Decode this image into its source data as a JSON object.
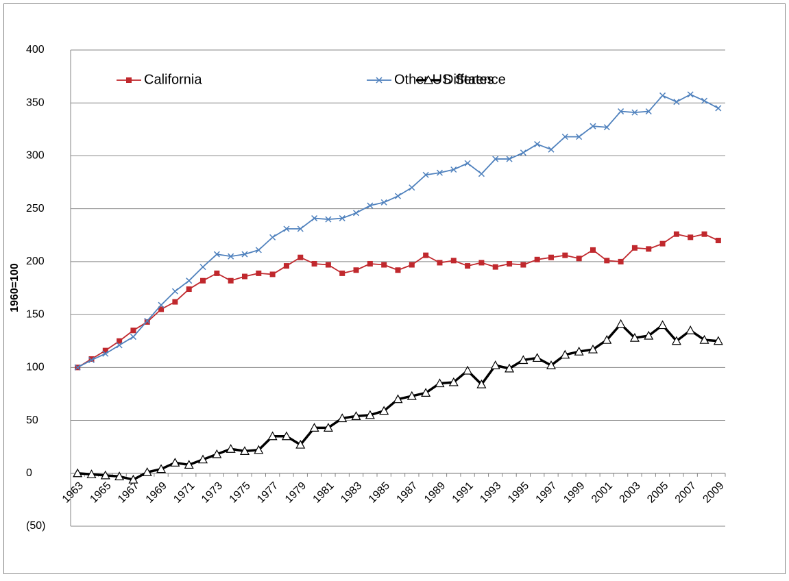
{
  "chart_data": {
    "type": "line",
    "y_label": "1960=100",
    "categories": [
      "1963",
      null,
      "1965",
      null,
      "1967",
      null,
      "1969",
      null,
      "1971",
      null,
      "1973",
      null,
      "1975",
      null,
      "1977",
      null,
      "1979",
      null,
      "1981",
      null,
      "1983",
      null,
      "1985",
      null,
      "1987",
      null,
      "1989",
      null,
      "1991",
      null,
      "1993",
      null,
      "1995",
      null,
      "1997",
      null,
      "1999",
      null,
      "2001",
      null,
      "2003",
      null,
      "2005",
      null,
      "2007",
      null,
      "2009"
    ],
    "series": [
      {
        "name": "California",
        "color": "#c0282d",
        "marker": "square",
        "values": [
          100,
          108,
          116,
          125,
          135,
          143,
          155,
          162,
          174,
          182,
          189,
          182,
          186,
          189,
          188,
          196,
          204,
          198,
          197,
          189,
          192,
          198,
          197,
          192,
          197,
          206,
          199,
          201,
          196,
          199,
          195,
          198,
          197,
          202,
          204,
          206,
          203,
          211,
          201,
          200,
          213,
          212,
          217,
          226,
          223,
          226,
          220
        ]
      },
      {
        "name": "Other US States",
        "color": "#4f81bd",
        "marker": "x",
        "values": [
          100,
          107,
          113,
          121,
          129,
          144,
          159,
          172,
          182,
          195,
          207,
          205,
          207,
          211,
          223,
          231,
          231,
          241,
          240,
          241,
          246,
          253,
          256,
          262,
          270,
          282,
          284,
          287,
          293,
          283,
          297,
          297,
          303,
          311,
          306,
          318,
          318,
          328,
          327,
          342,
          341,
          342,
          357,
          351,
          358,
          352,
          345
        ]
      },
      {
        "name": "Difference",
        "color": "#000000",
        "marker": "triangle",
        "values": [
          0,
          -1,
          -2,
          -3,
          -6,
          1,
          4,
          10,
          8,
          13,
          18,
          23,
          21,
          22,
          35,
          35,
          27,
          43,
          43,
          52,
          54,
          55,
          59,
          70,
          73,
          76,
          85,
          86,
          97,
          84,
          102,
          99,
          107,
          109,
          102,
          112,
          115,
          117,
          126,
          141,
          128,
          130,
          140,
          125,
          135,
          126,
          125
        ]
      }
    ],
    "ylim": [
      -50,
      400
    ],
    "yticks": [
      {
        "value": -50,
        "label": "(50)"
      },
      0,
      50,
      100,
      150,
      200,
      250,
      300,
      350,
      400
    ],
    "grid": true,
    "legend": "top-left"
  }
}
